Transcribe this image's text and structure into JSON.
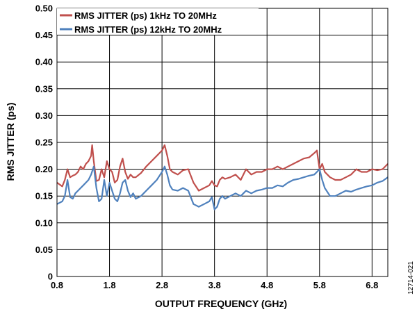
{
  "figure_id": "12714-021",
  "chart_data": {
    "type": "line",
    "title": "",
    "xlabel": "OUTPUT FREQUENCY (GHz)",
    "ylabel": "RMS JITTER (ps)",
    "xlim": [
      0.8,
      7.1
    ],
    "ylim": [
      0,
      0.5
    ],
    "xticks": [
      "0.8",
      "1.8",
      "2.8",
      "3.8",
      "4.8",
      "5.8",
      "6.8"
    ],
    "yticks": [
      "0",
      "0.05",
      "0.10",
      "0.15",
      "0.20",
      "0.25",
      "0.30",
      "0.35",
      "0.40",
      "0.45",
      "0.50"
    ],
    "grid": true,
    "legend_position": "top-left",
    "series": [
      {
        "name": "RMS JITTER (ps) 1kHz TO 20MHz",
        "color": "#c0504d",
        "x": [
          0.8,
          0.9,
          0.95,
          1.0,
          1.05,
          1.1,
          1.15,
          1.2,
          1.25,
          1.3,
          1.35,
          1.4,
          1.45,
          1.47,
          1.5,
          1.55,
          1.6,
          1.65,
          1.7,
          1.75,
          1.8,
          1.85,
          1.9,
          1.95,
          2.0,
          2.05,
          2.1,
          2.15,
          2.2,
          2.25,
          2.3,
          2.4,
          2.5,
          2.6,
          2.7,
          2.8,
          2.85,
          2.9,
          2.95,
          3.0,
          3.1,
          3.2,
          3.3,
          3.4,
          3.5,
          3.6,
          3.7,
          3.75,
          3.8,
          3.85,
          3.9,
          3.95,
          4.0,
          4.1,
          4.2,
          4.3,
          4.4,
          4.5,
          4.6,
          4.7,
          4.8,
          4.9,
          5.0,
          5.1,
          5.2,
          5.3,
          5.4,
          5.5,
          5.6,
          5.7,
          5.75,
          5.8,
          5.85,
          5.9,
          6.0,
          6.1,
          6.2,
          6.3,
          6.4,
          6.5,
          6.6,
          6.7,
          6.8,
          6.9,
          7.0,
          7.1
        ],
        "values": [
          0.175,
          0.168,
          0.18,
          0.2,
          0.185,
          0.188,
          0.19,
          0.195,
          0.205,
          0.2,
          0.21,
          0.215,
          0.225,
          0.245,
          0.215,
          0.178,
          0.18,
          0.2,
          0.185,
          0.215,
          0.2,
          0.195,
          0.175,
          0.18,
          0.205,
          0.22,
          0.195,
          0.182,
          0.19,
          0.185,
          0.185,
          0.193,
          0.205,
          0.215,
          0.225,
          0.235,
          0.245,
          0.225,
          0.2,
          0.195,
          0.19,
          0.198,
          0.2,
          0.175,
          0.16,
          0.165,
          0.17,
          0.178,
          0.17,
          0.168,
          0.18,
          0.185,
          0.182,
          0.185,
          0.19,
          0.18,
          0.2,
          0.19,
          0.195,
          0.195,
          0.2,
          0.2,
          0.205,
          0.2,
          0.205,
          0.21,
          0.215,
          0.22,
          0.222,
          0.23,
          0.235,
          0.2,
          0.21,
          0.195,
          0.185,
          0.18,
          0.18,
          0.185,
          0.19,
          0.2,
          0.195,
          0.195,
          0.2,
          0.198,
          0.2,
          0.21
        ]
      },
      {
        "name": "RMS JITTER (ps) 12kHz TO 20MHz",
        "color": "#4f81bd",
        "x": [
          0.8,
          0.9,
          0.95,
          1.0,
          1.05,
          1.1,
          1.15,
          1.2,
          1.25,
          1.3,
          1.35,
          1.4,
          1.45,
          1.5,
          1.55,
          1.6,
          1.65,
          1.7,
          1.75,
          1.8,
          1.85,
          1.9,
          1.95,
          2.0,
          2.05,
          2.1,
          2.15,
          2.2,
          2.25,
          2.3,
          2.4,
          2.5,
          2.6,
          2.7,
          2.8,
          2.85,
          2.9,
          2.95,
          3.0,
          3.1,
          3.2,
          3.3,
          3.4,
          3.5,
          3.6,
          3.7,
          3.75,
          3.8,
          3.85,
          3.9,
          3.95,
          4.0,
          4.1,
          4.2,
          4.3,
          4.4,
          4.5,
          4.6,
          4.7,
          4.8,
          4.9,
          5.0,
          5.1,
          5.2,
          5.3,
          5.4,
          5.5,
          5.6,
          5.7,
          5.75,
          5.8,
          5.85,
          5.9,
          6.0,
          6.1,
          6.2,
          6.3,
          6.4,
          6.5,
          6.6,
          6.7,
          6.8,
          6.9,
          7.0,
          7.1
        ],
        "values": [
          0.135,
          0.14,
          0.15,
          0.18,
          0.148,
          0.145,
          0.155,
          0.16,
          0.165,
          0.17,
          0.175,
          0.18,
          0.19,
          0.205,
          0.165,
          0.14,
          0.145,
          0.18,
          0.15,
          0.175,
          0.16,
          0.145,
          0.14,
          0.155,
          0.175,
          0.18,
          0.16,
          0.148,
          0.155,
          0.145,
          0.15,
          0.16,
          0.17,
          0.18,
          0.195,
          0.205,
          0.19,
          0.17,
          0.162,
          0.16,
          0.165,
          0.16,
          0.135,
          0.13,
          0.135,
          0.14,
          0.148,
          0.125,
          0.13,
          0.145,
          0.15,
          0.145,
          0.15,
          0.155,
          0.15,
          0.16,
          0.155,
          0.16,
          0.162,
          0.165,
          0.165,
          0.17,
          0.168,
          0.175,
          0.18,
          0.182,
          0.185,
          0.188,
          0.19,
          0.195,
          0.2,
          0.18,
          0.165,
          0.15,
          0.15,
          0.155,
          0.16,
          0.158,
          0.162,
          0.165,
          0.168,
          0.17,
          0.175,
          0.178,
          0.185
        ]
      }
    ]
  }
}
